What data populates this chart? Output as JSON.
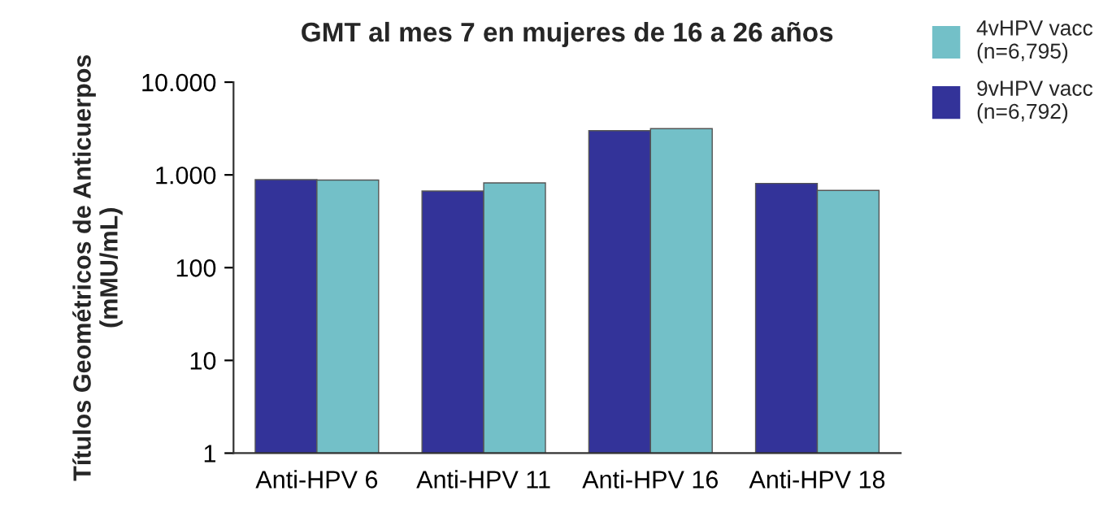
{
  "chart_data": {
    "type": "bar",
    "title": "GMT al mes 7 en mujeres de 16 a 26 años",
    "ylabel": "Títulos Geométricos de Anticuerpos\n(mMU/mL)",
    "categories": [
      "Anti-HPV 6",
      "Anti-HPV 11",
      "Anti-HPV 16",
      "Anti-HPV 18"
    ],
    "series": [
      {
        "name": "9vHPV vacc\n(n=6,792)",
        "color": "#333399",
        "values": [
          890,
          670,
          3000,
          810
        ]
      },
      {
        "name": "4vHPV vacc\n(n=6,795)",
        "color": "#73c0c8",
        "values": [
          880,
          820,
          3150,
          680
        ]
      }
    ],
    "log": true,
    "ylim": [
      1,
      10000
    ],
    "yticks": [
      1,
      10,
      100,
      {
        "value": 1000,
        "label": "1.000"
      },
      {
        "value": 10000,
        "label": "10.000"
      }
    ],
    "grid": false,
    "legend": "top right"
  }
}
